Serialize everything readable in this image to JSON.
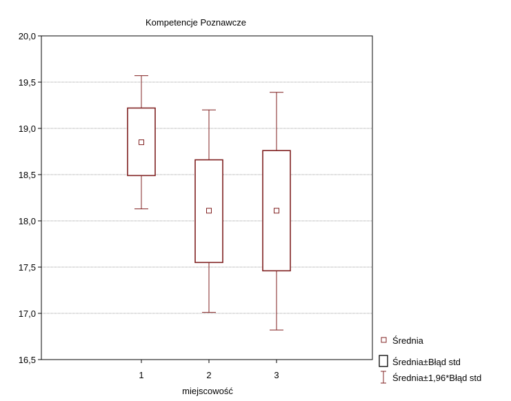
{
  "chart_data": {
    "type": "box",
    "title": "Kompetencje Poznawcze",
    "xlabel": "miejscowość",
    "ylabel": "",
    "ylim": [
      16.5,
      20.0
    ],
    "yticks": [
      "16,5",
      "17,0",
      "17,5",
      "18,0",
      "18,5",
      "19,0",
      "19,5",
      "20,0"
    ],
    "ytick_values": [
      16.5,
      17.0,
      17.5,
      18.0,
      18.5,
      19.0,
      19.5,
      20.0
    ],
    "categories": [
      "1",
      "2",
      "3"
    ],
    "grid": true,
    "legend_position": "bottom-right",
    "legend": [
      {
        "label": "Średnia",
        "symbol": "small-square"
      },
      {
        "label": "Średnia±Błąd std",
        "symbol": "box"
      },
      {
        "label": "Średnia±1,96*Błąd std",
        "symbol": "whisker"
      }
    ],
    "series": [
      {
        "category": "1",
        "mean": 18.85,
        "se_low": 18.49,
        "se_high": 19.22,
        "ci_low": 18.13,
        "ci_high": 19.57
      },
      {
        "category": "2",
        "mean": 18.11,
        "se_low": 17.55,
        "se_high": 18.66,
        "ci_low": 17.01,
        "ci_high": 19.2
      },
      {
        "category": "3",
        "mean": 18.11,
        "se_low": 17.46,
        "se_high": 18.76,
        "ci_low": 16.82,
        "ci_high": 19.39
      }
    ],
    "color": "#7f1f1f"
  }
}
